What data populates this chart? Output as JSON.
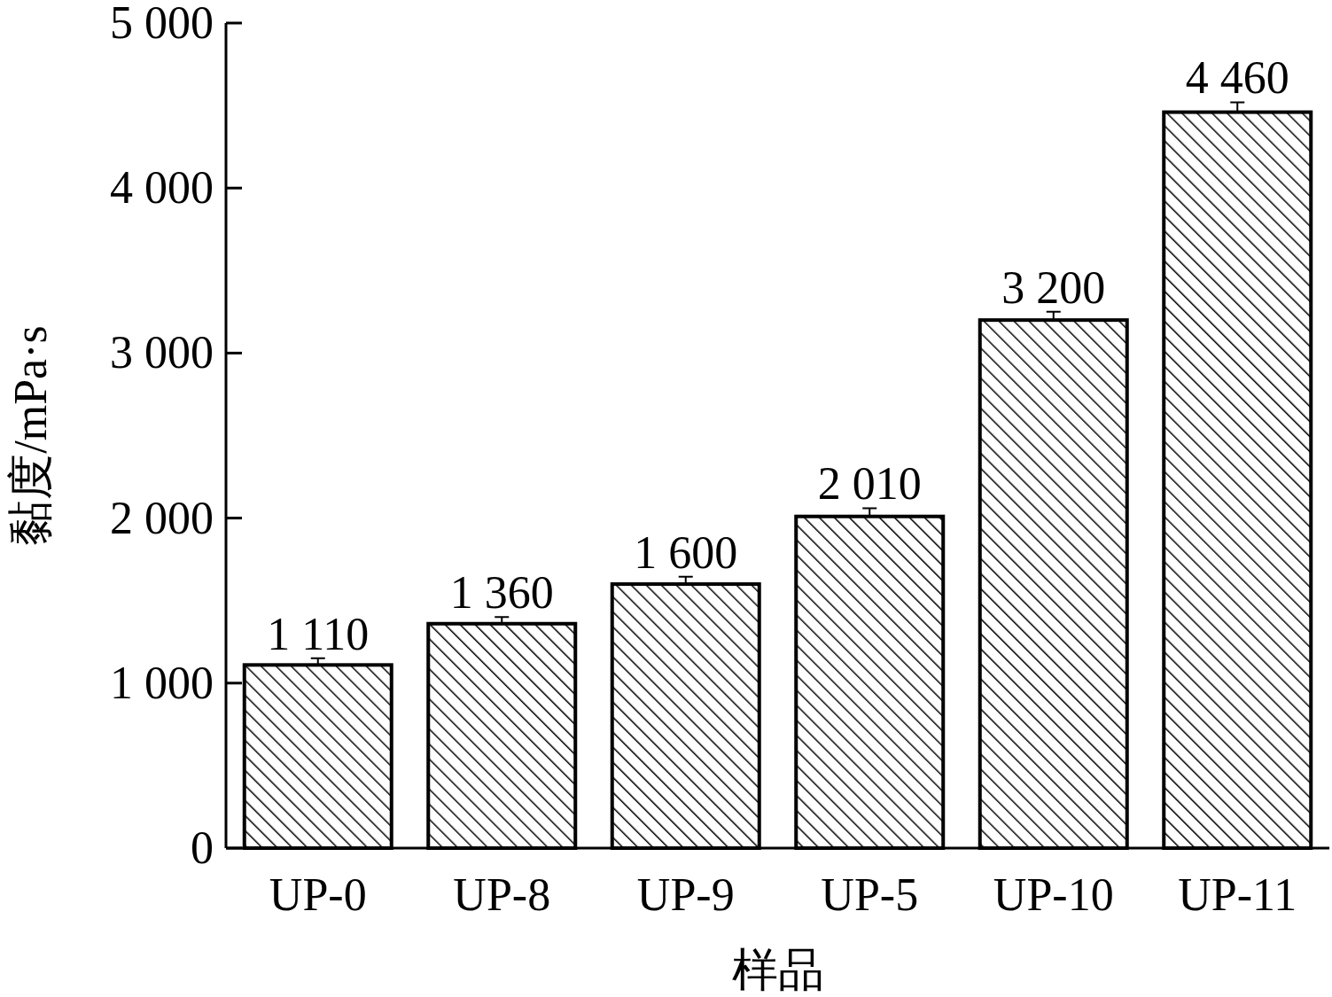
{
  "chart_data": {
    "type": "bar",
    "xlabel": "样品",
    "ylabel": "黏度/mPa·s",
    "categories": [
      "UP-0",
      "UP-8",
      "UP-9",
      "UP-5",
      "UP-10",
      "UP-11"
    ],
    "values": [
      1110,
      1360,
      1600,
      2010,
      3200,
      4460
    ],
    "errors": [
      40,
      40,
      45,
      50,
      50,
      60
    ],
    "value_labels": [
      "1 110",
      "1 360",
      "1 600",
      "2 010",
      "3 200",
      "4 460"
    ],
    "color": "#000000",
    "ylim": [
      0,
      5000
    ],
    "yticks": [
      0,
      {
        "value": 1000,
        "label": "1 000"
      },
      {
        "value": 2000,
        "label": "2 000"
      },
      {
        "value": 3000,
        "label": "3 000"
      },
      {
        "value": 4000,
        "label": "4 000"
      },
      {
        "value": 5000,
        "label": "5 000"
      }
    ],
    "grid": false
  }
}
